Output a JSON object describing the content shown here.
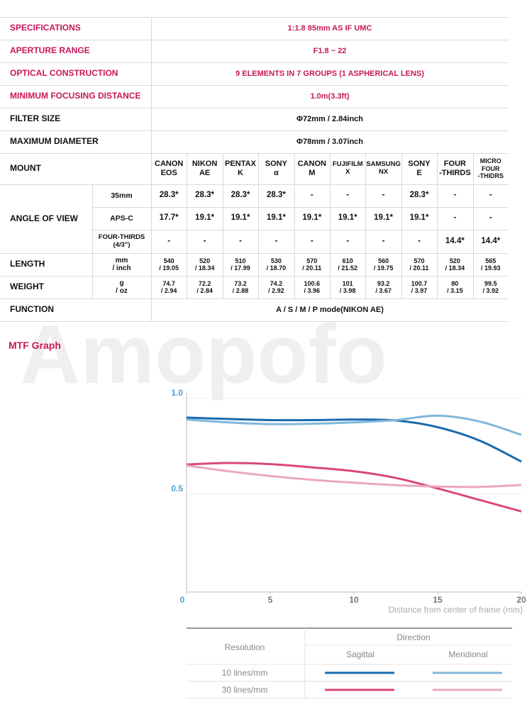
{
  "watermark": "Amopofo",
  "table": {
    "specs": [
      {
        "label": "SPECIFICATIONS",
        "value": "1:1.8 85mm AS IF UMC"
      },
      {
        "label": "APERTURE RANGE",
        "value": "F1.8 ~ 22"
      },
      {
        "label": "OPTICAL CONSTRUCTION",
        "value": "9 ELEMENTS IN 7 GROUPS (1 ASPHERICAL LENS)"
      },
      {
        "label": "MINIMUM FOCUSING DISTANCE",
        "value": "1.0m(3.3ft)"
      },
      {
        "label": "FILTER SIZE",
        "value": "Φ72mm / 2.84inch"
      },
      {
        "label": "MAXIMUM DIAMETER",
        "value": "Φ78mm / 3.07inch"
      }
    ],
    "mount": {
      "label": "MOUNT",
      "columns": [
        [
          "CANON",
          "EOS"
        ],
        [
          "NIKON",
          "AE"
        ],
        [
          "PENTAX",
          "K"
        ],
        [
          "SONY",
          "α"
        ],
        [
          "CANON",
          "M"
        ],
        [
          "FUJIFILM",
          "X"
        ],
        [
          "SAMSUNG",
          "NX"
        ],
        [
          "SONY",
          "E"
        ],
        [
          "FOUR",
          "-THIRDS"
        ],
        [
          "MICRO",
          "FOUR",
          "-THIDRS"
        ]
      ]
    },
    "angle_of_view": {
      "label": "ANGLE OF VIEW",
      "rows": [
        {
          "format": [
            "35mm"
          ],
          "values": [
            "28.3*",
            "28.3*",
            "28.3*",
            "28.3*",
            "-",
            "-",
            "-",
            "28.3*",
            "-",
            "-"
          ]
        },
        {
          "format": [
            "APS-C"
          ],
          "values": [
            "17.7*",
            "19.1*",
            "19.1*",
            "19.1*",
            "19.1*",
            "19.1*",
            "19.1*",
            "19.1*",
            "-",
            "-"
          ]
        },
        {
          "format": [
            "FOUR-THIRDS",
            "(4/3\")"
          ],
          "values": [
            "-",
            "-",
            "-",
            "-",
            "-",
            "-",
            "-",
            "-",
            "14.4*",
            "14.4*"
          ]
        }
      ]
    },
    "length": {
      "label": "LENGTH",
      "unit": [
        "mm",
        "/ inch"
      ],
      "values": [
        [
          "540",
          "/ 19.05"
        ],
        [
          "520",
          "/ 18.34"
        ],
        [
          "510",
          "/ 17.99"
        ],
        [
          "530",
          "/ 18.70"
        ],
        [
          "570",
          "/ 20.11"
        ],
        [
          "610",
          "/ 21.52"
        ],
        [
          "560",
          "/ 19.75"
        ],
        [
          "570",
          "/ 20.11"
        ],
        [
          "520",
          "/ 18.34"
        ],
        [
          "565",
          "/ 19.93"
        ]
      ]
    },
    "weight": {
      "label": "WEIGHT",
      "unit": [
        "g",
        "/ oz"
      ],
      "values": [
        [
          "74.7",
          "/ 2.94"
        ],
        [
          "72.2",
          "/ 2.84"
        ],
        [
          "73.2",
          "/ 2.88"
        ],
        [
          "74.2",
          "/ 2.92"
        ],
        [
          "100.6",
          "/ 3.96"
        ],
        [
          "101",
          "/ 3.98"
        ],
        [
          "93.2",
          "/ 3.67"
        ],
        [
          "100.7",
          "/ 3.97"
        ],
        [
          "80",
          "/ 3.15"
        ],
        [
          "99.5",
          "/ 3.92"
        ]
      ]
    },
    "function": {
      "label": "FUNCTION",
      "value": "A / S / M / P mode(NIKON AE)"
    }
  },
  "chart_data": {
    "type": "line",
    "title": "MTF Graph",
    "x_label": "Distance from center of frame (mm)",
    "x": [
      0,
      2.5,
      5,
      7.5,
      10,
      12.5,
      15,
      17.5,
      20
    ],
    "xlim": [
      0,
      20
    ],
    "xticks": [
      0,
      5,
      10,
      15,
      20
    ],
    "ylim": [
      0,
      1
    ],
    "yticks": [
      {
        "value": 0.5,
        "label": "0.5"
      },
      {
        "value": 1,
        "label": "1.0"
      }
    ],
    "series": [
      {
        "resolution": "10 lines/mm",
        "direction": "Sagittal",
        "color": "#1a6aad",
        "values": [
          0.9,
          0.893,
          0.887,
          0.887,
          0.89,
          0.885,
          0.85,
          0.78,
          0.67
        ]
      },
      {
        "resolution": "10 lines/mm",
        "direction": "Meridional",
        "color": "#80b7da",
        "values": [
          0.89,
          0.875,
          0.866,
          0.868,
          0.875,
          0.887,
          0.91,
          0.88,
          0.81
        ]
      },
      {
        "resolution": "30 lines/mm",
        "direction": "Sagittal",
        "color": "#d8487a",
        "values": [
          0.655,
          0.663,
          0.657,
          0.64,
          0.62,
          0.585,
          0.53,
          0.47,
          0.41
        ]
      },
      {
        "resolution": "30 lines/mm",
        "direction": "Meridional",
        "color": "#eba8bb",
        "values": [
          0.65,
          0.62,
          0.595,
          0.575,
          0.56,
          0.547,
          0.54,
          0.538,
          0.548
        ]
      }
    ],
    "legend": {
      "title": "Direction",
      "row_header": "Resolution"
    }
  }
}
